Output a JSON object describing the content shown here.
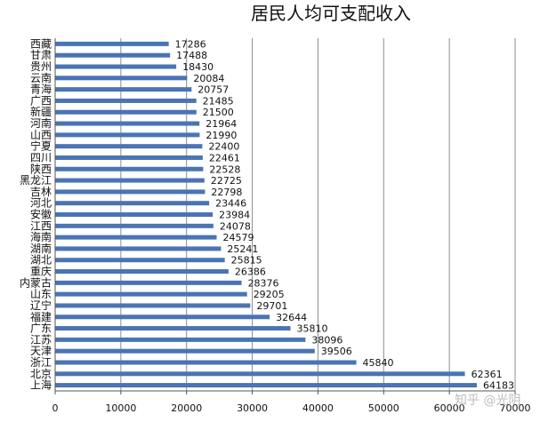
{
  "chart_data": {
    "type": "bar",
    "orientation": "horizontal",
    "title": "居民人均可支配收入",
    "categories": [
      "西藏",
      "甘肃",
      "贵州",
      "云南",
      "青海",
      "广西",
      "新疆",
      "河南",
      "山西",
      "宁夏",
      "四川",
      "陕西",
      "黑龙江",
      "吉林",
      "河北",
      "安徽",
      "江西",
      "海南",
      "湖南",
      "湖北",
      "重庆",
      "内蒙古",
      "山东",
      "辽宁",
      "福建",
      "广东",
      "江苏",
      "天津",
      "浙江",
      "北京",
      "上海"
    ],
    "values": [
      17286,
      17488,
      18430,
      20084,
      20757,
      21485,
      21500,
      21964,
      21990,
      22400,
      22461,
      22528,
      22725,
      22798,
      23446,
      23984,
      24078,
      24579,
      25241,
      25815,
      26386,
      28376,
      29205,
      29701,
      32644,
      35810,
      38096,
      39506,
      45840,
      62361,
      64183
    ],
    "value_labels": [
      "17286",
      "17488",
      "18430",
      "20084",
      "20757",
      "21485",
      "21500",
      "21964",
      "21990",
      "22400",
      "22461",
      "22528",
      "22725",
      "22798",
      "23446",
      "23984",
      "24078",
      "24579",
      "25241",
      "25815",
      "26386",
      "28376",
      "29205",
      "29701",
      "32644",
      "35810",
      "38096",
      "39506",
      "45840",
      "62361",
      "64183"
    ],
    "xlim": [
      0,
      70000
    ],
    "xticks": [
      "0",
      "10000",
      "20000",
      "30000",
      "40000",
      "50000",
      "60000",
      "70000"
    ],
    "grid": true,
    "legend": "none",
    "bar_color": "#4a74b4"
  },
  "watermark": "知乎 @光阴"
}
